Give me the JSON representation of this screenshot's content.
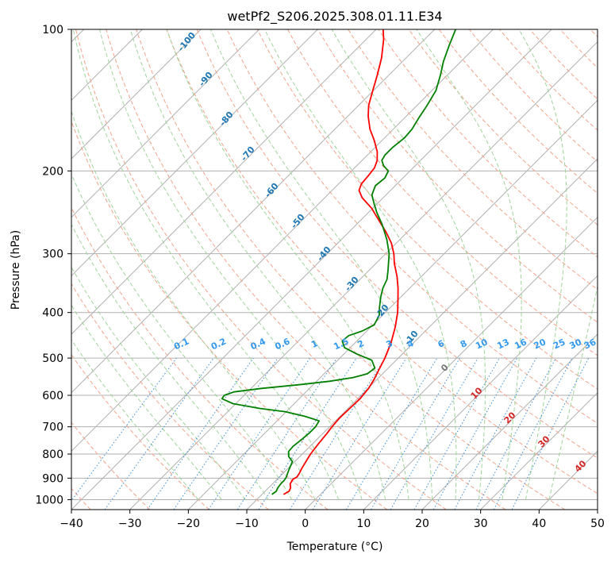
{
  "chart_data": {
    "type": "skew-t log-p",
    "title": "wetPf2_S206.2025.308.01.11.E34",
    "xlabel": "Temperature (°C)",
    "ylabel": "Pressure (hPa)",
    "xlim": [
      -40,
      50
    ],
    "ylim": [
      1050,
      100
    ],
    "x_scale": "skewed",
    "y_scale": "log",
    "grid": true,
    "x_ticks": [
      -40,
      -30,
      -20,
      -10,
      0,
      10,
      20,
      30,
      40,
      50
    ],
    "x_tick_labels": [
      "−40",
      "−30",
      "−20",
      "−10",
      "0",
      "10",
      "20",
      "30",
      "40",
      "50"
    ],
    "y_ticks": [
      1000,
      900,
      800,
      700,
      600,
      500,
      400,
      300,
      200,
      100
    ],
    "y_tick_labels": [
      "1000",
      "900",
      "800",
      "700",
      "600",
      "500",
      "400",
      "300",
      "200",
      "100"
    ],
    "series": [
      {
        "role": "temperature",
        "color": "#ff0000",
        "points": [
          [
            975,
            -6.3
          ],
          [
            960,
            -5.9
          ],
          [
            945,
            -6.2
          ],
          [
            925,
            -7.0
          ],
          [
            905,
            -7.3
          ],
          [
            895,
            -7.0
          ],
          [
            880,
            -7.2
          ],
          [
            860,
            -7.6
          ],
          [
            830,
            -8.1
          ],
          [
            800,
            -8.6
          ],
          [
            760,
            -9.0
          ],
          [
            725,
            -9.3
          ],
          [
            700,
            -9.6
          ],
          [
            670,
            -9.8
          ],
          [
            640,
            -9.7
          ],
          [
            610,
            -9.6
          ],
          [
            580,
            -9.9
          ],
          [
            555,
            -10.5
          ],
          [
            530,
            -11.3
          ],
          [
            500,
            -12.3
          ],
          [
            465,
            -13.8
          ],
          [
            430,
            -15.8
          ],
          [
            400,
            -17.9
          ],
          [
            375,
            -20.1
          ],
          [
            355,
            -22.0
          ],
          [
            335,
            -24.2
          ],
          [
            315,
            -26.8
          ],
          [
            300,
            -28.6
          ],
          [
            285,
            -30.8
          ],
          [
            270,
            -33.6
          ],
          [
            255,
            -36.8
          ],
          [
            240,
            -40.2
          ],
          [
            228,
            -43.6
          ],
          [
            220,
            -45.4
          ],
          [
            213,
            -46.1
          ],
          [
            205,
            -46.3
          ],
          [
            197,
            -46.6
          ],
          [
            190,
            -47.4
          ],
          [
            182,
            -48.9
          ],
          [
            172,
            -51.4
          ],
          [
            163,
            -54.0
          ],
          [
            153,
            -56.5
          ],
          [
            145,
            -58.3
          ],
          [
            135,
            -60.1
          ],
          [
            125,
            -62.0
          ],
          [
            115,
            -64.2
          ],
          [
            105,
            -67.0
          ],
          [
            100,
            -68.8
          ]
        ]
      },
      {
        "role": "dewpoint",
        "color": "#008000",
        "points": [
          [
            975,
            -8.3
          ],
          [
            960,
            -8.1
          ],
          [
            945,
            -8.4
          ],
          [
            925,
            -8.6
          ],
          [
            910,
            -8.6
          ],
          [
            895,
            -8.8
          ],
          [
            880,
            -9.2
          ],
          [
            860,
            -9.7
          ],
          [
            830,
            -10.4
          ],
          [
            810,
            -11.9
          ],
          [
            790,
            -12.8
          ],
          [
            770,
            -12.9
          ],
          [
            745,
            -12.6
          ],
          [
            720,
            -12.4
          ],
          [
            700,
            -12.4
          ],
          [
            680,
            -12.8
          ],
          [
            665,
            -16.0
          ],
          [
            650,
            -20.2
          ],
          [
            640,
            -25.0
          ],
          [
            625,
            -30.5
          ],
          [
            610,
            -33.2
          ],
          [
            600,
            -33.4
          ],
          [
            590,
            -32.3
          ],
          [
            580,
            -28.2
          ],
          [
            570,
            -22.6
          ],
          [
            560,
            -17.8
          ],
          [
            550,
            -14.4
          ],
          [
            540,
            -12.6
          ],
          [
            525,
            -12.3
          ],
          [
            505,
            -14.2
          ],
          [
            490,
            -17.8
          ],
          [
            475,
            -21.0
          ],
          [
            460,
            -22.5
          ],
          [
            448,
            -22.3
          ],
          [
            438,
            -20.8
          ],
          [
            425,
            -19.8
          ],
          [
            405,
            -20.6
          ],
          [
            390,
            -21.9
          ],
          [
            370,
            -23.5
          ],
          [
            355,
            -24.6
          ],
          [
            340,
            -25.4
          ],
          [
            325,
            -26.8
          ],
          [
            300,
            -29.4
          ],
          [
            280,
            -32.2
          ],
          [
            260,
            -35.6
          ],
          [
            245,
            -38.6
          ],
          [
            235,
            -40.5
          ],
          [
            225,
            -42.4
          ],
          [
            215,
            -43.4
          ],
          [
            207,
            -43.1
          ],
          [
            200,
            -43.7
          ],
          [
            195,
            -45.4
          ],
          [
            190,
            -46.6
          ],
          [
            185,
            -47.0
          ],
          [
            178,
            -47.0
          ],
          [
            170,
            -46.6
          ],
          [
            163,
            -46.8
          ],
          [
            155,
            -47.5
          ],
          [
            145,
            -48.3
          ],
          [
            135,
            -49.3
          ],
          [
            125,
            -51.2
          ],
          [
            117,
            -53.0
          ],
          [
            108,
            -54.8
          ],
          [
            100,
            -56.4
          ]
        ]
      }
    ],
    "dry_adiabat_labels": [
      "-100",
      "-90",
      "-80",
      "-70",
      "-60",
      "-50",
      "-40",
      "-30",
      "-20",
      "-10"
    ],
    "mixing_ratio_labels": [
      "0.1",
      "0.2",
      "0.4",
      "0.6",
      "1",
      "1.5",
      "2",
      "3",
      "4",
      "6",
      "8",
      "10",
      "13",
      "16",
      "20",
      "25",
      "30",
      "36"
    ],
    "moist_adiabat_labels": [
      "0",
      "10",
      "20",
      "30",
      "40"
    ],
    "colors": {
      "isobar": "#b0b0b0",
      "isotherm": "#b0b0b0",
      "dry_adiabat": "#f4a38a",
      "moist_adiabat": "#9fd49a",
      "mixing_ratio": "#3b8fd8",
      "dry_label": "#1f77b4",
      "mix_label": "#3399ee",
      "wet_label": "#d62728"
    }
  }
}
